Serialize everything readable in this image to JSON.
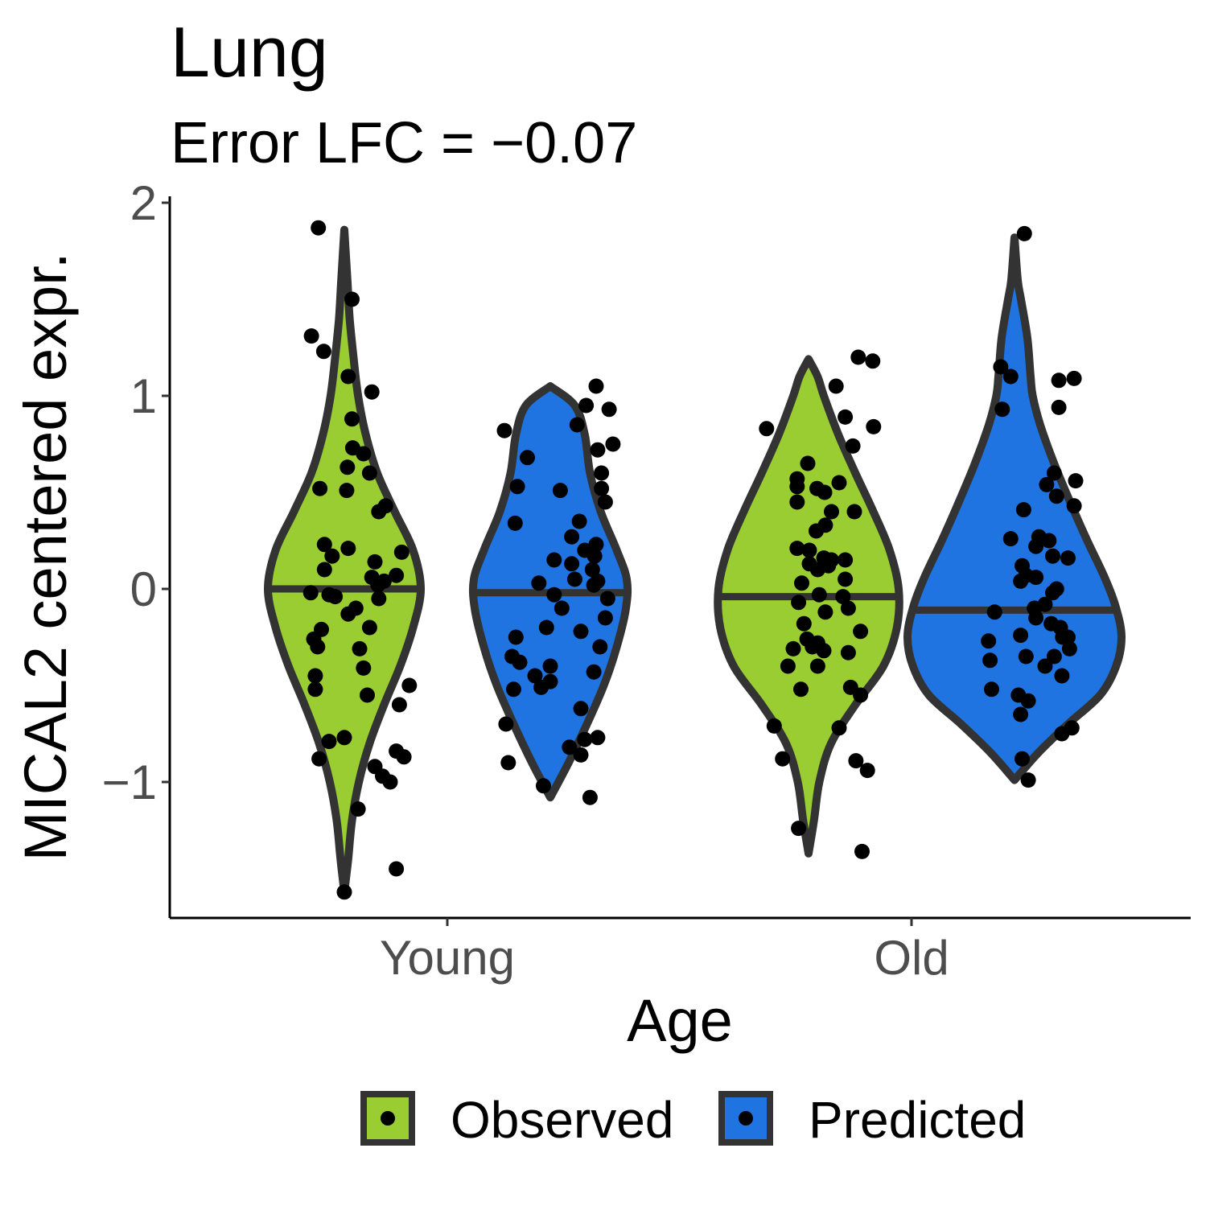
{
  "chart_data": {
    "type": "violin",
    "title": "Lung",
    "subtitle": "Error LFC = −0.07",
    "xlabel": "Age",
    "ylabel": "MICAL2 centered expr.",
    "categories": [
      "Young",
      "Old"
    ],
    "ylim": [
      -1.7,
      2.05
    ],
    "yticks": [
      -1,
      0,
      1,
      2
    ],
    "ytick_labels": [
      "−1",
      "0",
      "1",
      "2"
    ],
    "grid": false,
    "legend_position": "bottom",
    "series": [
      {
        "name": "Observed",
        "color": "#9acd32",
        "groups": [
          {
            "category": "Young",
            "median": 0.0,
            "density": [
              [
                -1.57,
                0.0
              ],
              [
                -1.4,
                0.05
              ],
              [
                -1.2,
                0.1
              ],
              [
                -1.0,
                0.19
              ],
              [
                -0.8,
                0.33
              ],
              [
                -0.6,
                0.52
              ],
              [
                -0.4,
                0.73
              ],
              [
                -0.2,
                0.9
              ],
              [
                0.0,
                1.0
              ],
              [
                0.2,
                0.9
              ],
              [
                0.4,
                0.66
              ],
              [
                0.6,
                0.43
              ],
              [
                0.8,
                0.28
              ],
              [
                1.0,
                0.18
              ],
              [
                1.2,
                0.12
              ],
              [
                1.4,
                0.07
              ],
              [
                1.6,
                0.04
              ],
              [
                1.86,
                0.0
              ]
            ],
            "points": [
              1.87,
              1.5,
              1.31,
              1.23,
              1.1,
              1.02,
              0.88,
              0.73,
              0.7,
              0.63,
              0.6,
              0.52,
              0.51,
              0.43,
              0.4,
              0.23,
              0.21,
              0.19,
              0.17,
              0.14,
              0.1,
              0.07,
              0.06,
              0.04,
              0.02,
              -0.02,
              -0.03,
              -0.04,
              -0.05,
              -0.1,
              -0.13,
              -0.2,
              -0.21,
              -0.26,
              -0.3,
              -0.31,
              -0.41,
              -0.45,
              -0.5,
              -0.52,
              -0.55,
              -0.6,
              -0.77,
              -0.79,
              -0.84,
              -0.87,
              -0.88,
              -0.92,
              -0.97,
              -1.0,
              -1.14,
              -1.45,
              -1.57
            ],
            "offsets": [
              -0.34,
              0.1,
              -0.43,
              -0.27,
              0.05,
              0.36,
              0.1,
              0.11,
              0.25,
              0.04,
              0.33,
              -0.32,
              0.03,
              0.54,
              0.45,
              -0.26,
              0.05,
              0.75,
              -0.16,
              0.4,
              -0.26,
              0.68,
              0.36,
              0.52,
              0.44,
              -0.44,
              -0.2,
              -0.12,
              0.45,
              0.15,
              0.05,
              0.33,
              -0.3,
              -0.4,
              -0.35,
              0.2,
              0.25,
              -0.38,
              0.85,
              -0.38,
              0.3,
              0.72,
              0.0,
              -0.2,
              0.68,
              0.78,
              -0.33,
              0.4,
              0.5,
              0.6,
              0.18,
              0.68,
              0.0
            ]
          },
          {
            "category": "Old",
            "median": -0.04,
            "density": [
              [
                -1.37,
                0.0
              ],
              [
                -1.2,
                0.06
              ],
              [
                -1.0,
                0.12
              ],
              [
                -0.8,
                0.25
              ],
              [
                -0.6,
                0.52
              ],
              [
                -0.4,
                0.83
              ],
              [
                -0.2,
                0.98
              ],
              [
                0.0,
                1.0
              ],
              [
                0.2,
                0.9
              ],
              [
                0.4,
                0.72
              ],
              [
                0.6,
                0.52
              ],
              [
                0.8,
                0.33
              ],
              [
                1.0,
                0.17
              ],
              [
                1.1,
                0.1
              ],
              [
                1.19,
                0.0
              ]
            ],
            "points": [
              1.2,
              1.18,
              1.05,
              0.89,
              0.84,
              0.83,
              0.74,
              0.65,
              0.57,
              0.55,
              0.53,
              0.52,
              0.5,
              0.45,
              0.4,
              0.4,
              0.33,
              0.3,
              0.21,
              0.2,
              0.16,
              0.15,
              0.15,
              0.13,
              0.12,
              0.1,
              0.05,
              0.03,
              -0.03,
              -0.04,
              -0.07,
              -0.1,
              -0.12,
              -0.18,
              -0.22,
              -0.26,
              -0.28,
              -0.3,
              -0.31,
              -0.32,
              -0.33,
              -0.4,
              -0.4,
              -0.51,
              -0.52,
              -0.55,
              -0.71,
              -0.72,
              -0.88,
              -0.89,
              -0.94,
              -1.24,
              -1.36
            ],
            "offsets": [
              0.65,
              0.84,
              0.36,
              0.48,
              0.85,
              -0.55,
              0.58,
              -0.01,
              -0.15,
              0.4,
              -0.15,
              0.11,
              0.21,
              -0.15,
              0.6,
              0.3,
              0.22,
              0.1,
              -0.15,
              0.01,
              0.2,
              0.3,
              0.48,
              0.01,
              0.26,
              0.12,
              0.48,
              -0.09,
              0.14,
              0.45,
              -0.13,
              0.52,
              0.22,
              -0.06,
              0.68,
              -0.02,
              0.12,
              0.05,
              -0.2,
              0.2,
              0.52,
              -0.27,
              0.12,
              0.55,
              -0.1,
              0.68,
              -0.45,
              0.4,
              -0.34,
              0.62,
              0.77,
              -0.13,
              0.7
            ]
          }
        ]
      },
      {
        "name": "Predicted",
        "color": "#1f74e2",
        "groups": [
          {
            "category": "Young",
            "median": -0.02,
            "density": [
              [
                -1.08,
                0.0
              ],
              [
                -0.9,
                0.24
              ],
              [
                -0.7,
                0.48
              ],
              [
                -0.5,
                0.7
              ],
              [
                -0.3,
                0.87
              ],
              [
                -0.1,
                0.99
              ],
              [
                0.05,
                1.0
              ],
              [
                0.2,
                0.87
              ],
              [
                0.4,
                0.66
              ],
              [
                0.6,
                0.52
              ],
              [
                0.8,
                0.45
              ],
              [
                0.95,
                0.32
              ],
              [
                1.05,
                0.0
              ]
            ],
            "points": [
              1.05,
              0.95,
              0.93,
              0.85,
              0.82,
              0.75,
              0.72,
              0.68,
              0.6,
              0.53,
              0.52,
              0.51,
              0.45,
              0.35,
              0.34,
              0.27,
              0.23,
              0.2,
              0.17,
              0.15,
              0.13,
              0.1,
              0.05,
              0.04,
              0.03,
              0.02,
              -0.03,
              -0.05,
              -0.1,
              -0.15,
              -0.2,
              -0.22,
              -0.25,
              -0.3,
              -0.35,
              -0.38,
              -0.4,
              -0.43,
              -0.45,
              -0.48,
              -0.51,
              -0.52,
              -0.62,
              -0.7,
              -0.77,
              -0.78,
              -0.82,
              -0.86,
              -0.9,
              -1.02,
              -1.08
            ],
            "offsets": [
              0.6,
              0.47,
              0.77,
              0.35,
              -0.6,
              0.82,
              0.62,
              -0.3,
              0.67,
              -0.43,
              0.67,
              0.13,
              0.72,
              0.38,
              -0.46,
              0.28,
              0.6,
              0.45,
              0.58,
              0.05,
              0.28,
              0.55,
              0.32,
              0.62,
              -0.15,
              0.57,
              0.05,
              0.75,
              0.15,
              0.72,
              -0.05,
              0.4,
              -0.45,
              0.65,
              -0.5,
              -0.4,
              0.0,
              0.57,
              -0.2,
              0.0,
              -0.12,
              -0.48,
              0.4,
              -0.58,
              0.62,
              0.45,
              0.25,
              0.4,
              -0.55,
              -0.09,
              0.52
            ]
          },
          {
            "category": "Old",
            "median": -0.11,
            "density": [
              [
                -0.99,
                0.0
              ],
              [
                -0.85,
                0.22
              ],
              [
                -0.7,
                0.5
              ],
              [
                -0.55,
                0.8
              ],
              [
                -0.4,
                0.95
              ],
              [
                -0.25,
                1.0
              ],
              [
                -0.1,
                0.95
              ],
              [
                0.05,
                0.85
              ],
              [
                0.25,
                0.68
              ],
              [
                0.45,
                0.52
              ],
              [
                0.65,
                0.37
              ],
              [
                0.85,
                0.24
              ],
              [
                1.0,
                0.17
              ],
              [
                1.1,
                0.15
              ],
              [
                1.3,
                0.12
              ],
              [
                1.5,
                0.06
              ],
              [
                1.6,
                0.03
              ],
              [
                1.82,
                0.0
              ]
            ],
            "points": [
              1.84,
              1.15,
              1.1,
              1.09,
              1.08,
              0.94,
              0.93,
              0.6,
              0.56,
              0.54,
              0.48,
              0.43,
              0.41,
              0.27,
              0.26,
              0.25,
              0.22,
              0.17,
              0.16,
              0.12,
              0.07,
              0.06,
              0.04,
              0.0,
              -0.02,
              -0.08,
              -0.1,
              -0.12,
              -0.15,
              -0.18,
              -0.2,
              -0.24,
              -0.25,
              -0.25,
              -0.27,
              -0.31,
              -0.35,
              -0.35,
              -0.37,
              -0.4,
              -0.45,
              -0.52,
              -0.55,
              -0.58,
              -0.65,
              -0.72,
              -0.75,
              -0.88,
              -0.99
            ],
            "offsets": [
              0.13,
              -0.18,
              -0.05,
              0.78,
              0.58,
              0.58,
              -0.16,
              0.52,
              0.8,
              0.42,
              0.55,
              0.78,
              0.12,
              0.32,
              -0.05,
              0.45,
              0.28,
              0.5,
              0.7,
              0.1,
              0.15,
              0.28,
              0.08,
              0.55,
              0.5,
              0.4,
              0.26,
              -0.26,
              0.28,
              0.48,
              0.6,
              0.08,
              0.63,
              0.7,
              -0.34,
              0.72,
              0.15,
              0.52,
              -0.32,
              0.4,
              0.62,
              -0.3,
              0.05,
              0.18,
              0.08,
              0.75,
              0.62,
              0.1,
              0.18
            ]
          }
        ]
      }
    ]
  }
}
